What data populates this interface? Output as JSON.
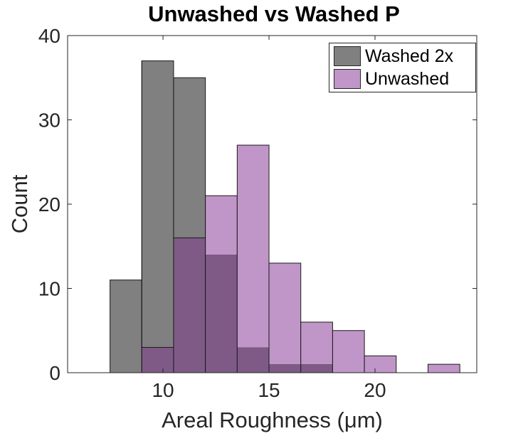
{
  "chart_data": {
    "type": "bar",
    "title": "Unwashed vs Washed P",
    "xlabel": "Areal Roughness (μm)",
    "ylabel": "Count",
    "xlim": [
      5.5,
      24.8
    ],
    "ylim": [
      0,
      40
    ],
    "xticks": [
      10,
      15,
      20
    ],
    "yticks": [
      0,
      10,
      20,
      30,
      40
    ],
    "grid": false,
    "legend_position": "top-right",
    "series": [
      {
        "name": "Washed 2x",
        "color": "#808080",
        "bin_edges": [
          7.5,
          9.0,
          10.5,
          12.0,
          13.5,
          15.0,
          16.5,
          18.0
        ],
        "values": [
          11,
          37,
          35,
          14,
          3,
          1,
          1
        ]
      },
      {
        "name": "Unwashed",
        "color": "#c096c8",
        "bin_edges": [
          9.0,
          10.5,
          12.0,
          13.5,
          15.0,
          16.5,
          18.0,
          19.5,
          21.0,
          22.5,
          24.0
        ],
        "values": [
          3,
          16,
          21,
          27,
          13,
          6,
          5,
          2,
          0,
          1
        ]
      }
    ],
    "overlap_color": "#7f5a87"
  }
}
